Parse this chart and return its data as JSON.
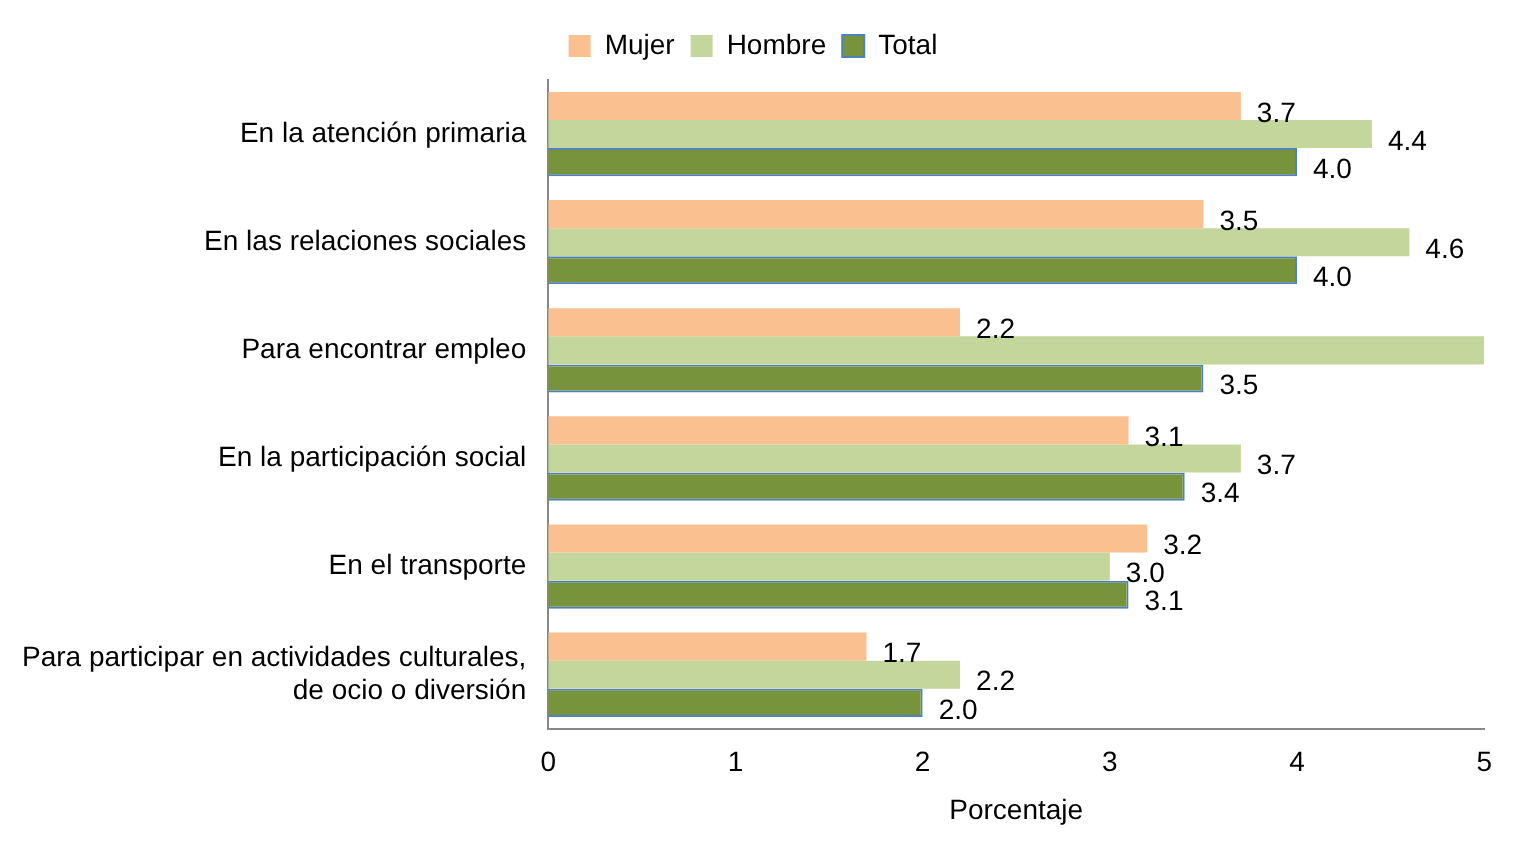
{
  "chart_data": {
    "type": "bar",
    "orientation": "horizontal",
    "xlabel": "Porcentaje",
    "categories": [
      "En la atención primaria",
      "En las relaciones sociales",
      "Para encontrar empleo",
      "En la participación social",
      "En el transporte",
      "Para participar en actividades culturales, de ocio o diversión"
    ],
    "series": [
      {
        "name": "Mujer",
        "color": "#fac090",
        "values": [
          3.7,
          3.5,
          2.2,
          3.1,
          3.2,
          1.7
        ],
        "value_labels": [
          "3.7",
          "3.5",
          "2.2",
          "3.1",
          "3.2",
          "1.7"
        ]
      },
      {
        "name": "Hombre",
        "color": "#c3d69b",
        "values": [
          4.4,
          4.6,
          5.0,
          3.7,
          3.0,
          2.2
        ],
        "value_labels": [
          "4.4",
          "4.6",
          null,
          "3.7",
          "3.0",
          "2.2"
        ]
      },
      {
        "name": "Total",
        "color": "#77933c",
        "values": [
          4.0,
          4.0,
          3.5,
          3.4,
          3.1,
          2.0
        ],
        "value_labels": [
          "4.0",
          "4.0",
          "3.5",
          "3.4",
          "3.1",
          "2.0"
        ]
      }
    ],
    "xlim": [
      0,
      5
    ],
    "xticks": [
      0,
      1,
      2,
      3,
      4,
      5
    ],
    "grid": false,
    "legend": "top"
  }
}
